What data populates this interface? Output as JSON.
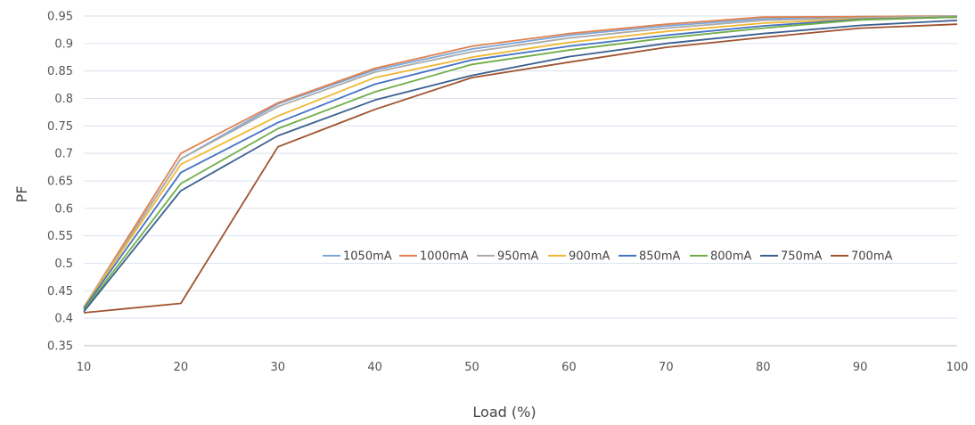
{
  "chart_data": {
    "type": "line",
    "xlabel": "Load (%)",
    "ylabel": "PF",
    "x": [
      10,
      20,
      30,
      40,
      50,
      60,
      70,
      80,
      90,
      100
    ],
    "xlim": [
      10,
      100
    ],
    "ylim": [
      0.35,
      0.95
    ],
    "x_ticks": [
      "10",
      "20",
      "30",
      "40",
      "50",
      "60",
      "70",
      "80",
      "90",
      "100"
    ],
    "y_ticks": [
      "0.35",
      "0.4",
      "0.45",
      "0.5",
      "0.55",
      "0.6",
      "0.65",
      "0.7",
      "0.75",
      "0.8",
      "0.85",
      "0.9",
      "0.95"
    ],
    "grid": "horizontal",
    "legend_position": "inside-lower-right",
    "series": [
      {
        "name": "1050mA",
        "color": "#7aa6d9",
        "values": [
          0.42,
          0.69,
          0.79,
          0.852,
          0.89,
          0.915,
          0.932,
          0.945,
          0.949,
          0.95
        ]
      },
      {
        "name": "1000mA",
        "color": "#e0814f",
        "values": [
          0.42,
          0.7,
          0.792,
          0.855,
          0.895,
          0.918,
          0.935,
          0.948,
          0.949,
          0.95
        ]
      },
      {
        "name": "950mA",
        "color": "#aaaaaa",
        "values": [
          0.42,
          0.69,
          0.785,
          0.848,
          0.885,
          0.91,
          0.928,
          0.942,
          0.947,
          0.95
        ]
      },
      {
        "name": "900mA",
        "color": "#f2b731",
        "values": [
          0.42,
          0.68,
          0.768,
          0.838,
          0.875,
          0.902,
          0.922,
          0.937,
          0.945,
          0.948
        ]
      },
      {
        "name": "850mA",
        "color": "#4472c4",
        "values": [
          0.418,
          0.665,
          0.756,
          0.826,
          0.87,
          0.895,
          0.915,
          0.932,
          0.944,
          0.948
        ]
      },
      {
        "name": "800mA",
        "color": "#70ad47",
        "values": [
          0.415,
          0.645,
          0.745,
          0.812,
          0.862,
          0.888,
          0.91,
          0.928,
          0.943,
          0.948
        ]
      },
      {
        "name": "750mA",
        "color": "#3b5f8f",
        "values": [
          0.412,
          0.632,
          0.732,
          0.797,
          0.842,
          0.876,
          0.9,
          0.918,
          0.933,
          0.942
        ]
      },
      {
        "name": "700mA",
        "color": "#a0522d",
        "values": [
          0.41,
          0.427,
          0.712,
          0.78,
          0.838,
          0.866,
          0.893,
          0.911,
          0.928,
          0.935
        ]
      }
    ]
  }
}
